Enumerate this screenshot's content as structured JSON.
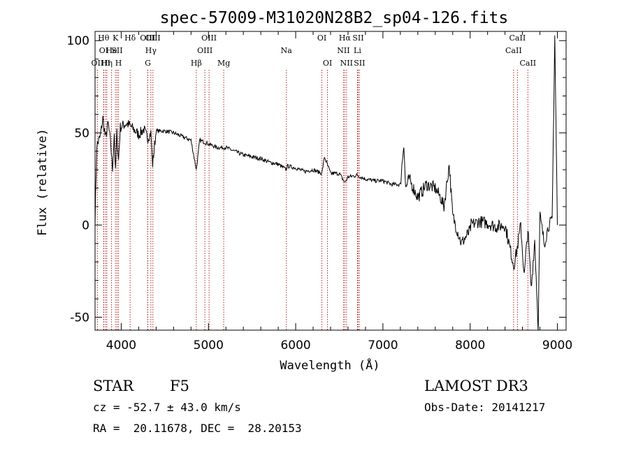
{
  "title": "spec-57009-M31020N28B2_sp04-126.fits",
  "chart_data": {
    "type": "line",
    "title": "spec-57009-M31020N28B2_sp04-126.fits",
    "xlabel": "Wavelength (Å)",
    "ylabel": "Flux (relative)",
    "xlim": [
      3700,
      9100
    ],
    "ylim": [
      -57,
      105
    ],
    "x_ticks": [
      4000,
      5000,
      6000,
      7000,
      8000,
      9000
    ],
    "y_ticks": [
      -50,
      0,
      50,
      100
    ],
    "grid": false,
    "series": [
      {
        "x": [
          3700,
          3720,
          3760,
          3790,
          3820,
          3850,
          3880,
          3900,
          3920,
          3934,
          3950,
          3969,
          3990,
          4020,
          4060,
          4100,
          4140,
          4200,
          4260,
          4300,
          4340,
          4360,
          4400,
          4500,
          4600,
          4700,
          4800,
          4861,
          4900,
          5000,
          5100,
          5200,
          5300,
          5400,
          5500,
          5600,
          5700,
          5800,
          5893,
          5900,
          6000,
          6100,
          6200,
          6300,
          6330,
          6400,
          6500,
          6563,
          6600,
          6700,
          6800,
          6900,
          7000,
          7100,
          7200,
          7240,
          7260,
          7300,
          7400,
          7500,
          7600,
          7660,
          7700,
          7760,
          7800,
          7900,
          8000,
          8010,
          8100,
          8200,
          8300,
          8400,
          8500,
          8542,
          8580,
          8620,
          8662,
          8700,
          8740,
          8780,
          8800,
          8850,
          8900,
          8940,
          8970,
          9000
        ],
        "y": [
          2,
          43,
          48,
          58,
          47,
          55,
          44,
          30,
          50,
          28,
          50,
          35,
          53,
          54,
          55,
          54,
          52,
          49,
          52,
          47,
          50,
          33,
          51,
          51,
          50,
          48,
          46,
          30,
          46,
          44,
          42,
          42,
          40,
          38,
          37,
          36,
          34,
          33,
          30,
          32,
          31,
          29,
          30,
          28,
          37,
          28,
          28,
          23,
          26,
          27,
          25,
          24,
          24,
          22,
          22,
          45,
          20,
          25,
          15,
          22,
          20,
          15,
          10,
          33,
          5,
          -10,
          -3,
          0,
          2,
          1,
          -1,
          0,
          -22,
          -12,
          0,
          -28,
          -2,
          -35,
          -8,
          -55,
          5,
          -10,
          0,
          2,
          103,
          0
        ]
      }
    ],
    "lines": [
      {
        "name": "OII",
        "wl": 3727,
        "row": 3
      },
      {
        "name": "Hθ",
        "wl": 3798,
        "row": 1
      },
      {
        "name": "OI",
        "wl": 3800,
        "row": 2
      },
      {
        "name": "HI",
        "wl": 3820,
        "row": 3
      },
      {
        "name": "Hη",
        "wl": 3835,
        "row": 3
      },
      {
        "name": "He",
        "wl": 3889,
        "row": 2
      },
      {
        "name": "K",
        "wl": 3934,
        "row": 1
      },
      {
        "name": "SII",
        "wl": 3952,
        "row": 2
      },
      {
        "name": "H",
        "wl": 3969,
        "row": 3
      },
      {
        "name": "Hδ",
        "wl": 4102,
        "row": 1
      },
      {
        "name": "OIII",
        "wl": 4303,
        "row": 1
      },
      {
        "name": "G",
        "wl": 4305,
        "row": 3
      },
      {
        "name": "Hγ",
        "wl": 4340,
        "row": 2
      },
      {
        "name": "OIII",
        "wl": 4363,
        "row": 1
      },
      {
        "name": "Hβ",
        "wl": 4861,
        "row": 3
      },
      {
        "name": "OIII",
        "wl": 4959,
        "row": 2
      },
      {
        "name": "OIII",
        "wl": 5007,
        "row": 1
      },
      {
        "name": "Mg",
        "wl": 5175,
        "row": 3
      },
      {
        "name": "Na",
        "wl": 5893,
        "row": 2
      },
      {
        "name": "OI",
        "wl": 6300,
        "row": 1
      },
      {
        "name": "OI",
        "wl": 6364,
        "row": 3
      },
      {
        "name": "NII",
        "wl": 6548,
        "row": 2
      },
      {
        "name": "Hα",
        "wl": 6563,
        "row": 1
      },
      {
        "name": "NII",
        "wl": 6583,
        "row": 3
      },
      {
        "name": "Li",
        "wl": 6708,
        "row": 2
      },
      {
        "name": "SII",
        "wl": 6716,
        "row": 1
      },
      {
        "name": "SII",
        "wl": 6731,
        "row": 3
      },
      {
        "name": "CaII",
        "wl": 8498,
        "row": 2
      },
      {
        "name": "CaII",
        "wl": 8542,
        "row": 1
      },
      {
        "name": "CaII",
        "wl": 8662,
        "row": 3
      }
    ]
  },
  "footer": {
    "object_type": "STAR",
    "subclass": "F5",
    "survey": "LAMOST DR3",
    "cz": "cz = -52.7 ± 43.0 km/s",
    "obs_date": "Obs-Date: 20141217",
    "coords": "RA =  20.11678, DEC =  28.20153"
  },
  "colors": {
    "spectrum": "#000000",
    "line_markers": "#b22222"
  }
}
